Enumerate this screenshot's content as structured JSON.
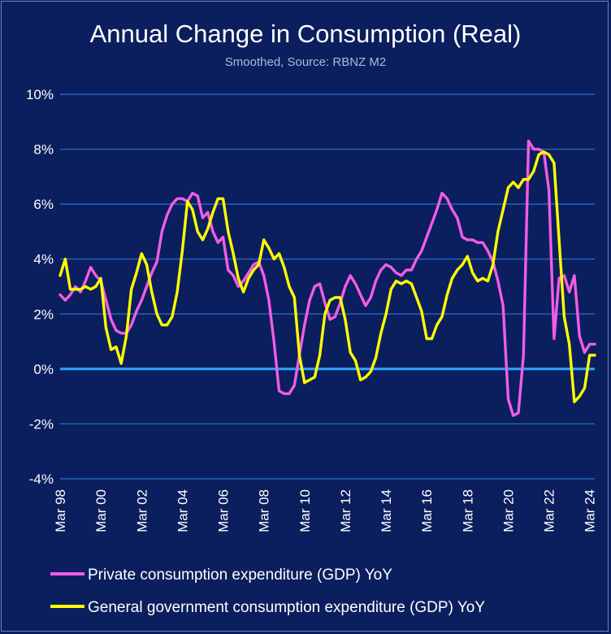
{
  "chart_data": {
    "type": "line",
    "title": "Annual Change in Consumption (Real)",
    "subtitle": "Smoothed, Source: RBNZ M2",
    "xlabel": "",
    "ylabel": "",
    "ylim": [
      -4,
      10
    ],
    "y_ticks": [
      "10%",
      "8%",
      "6%",
      "4%",
      "2%",
      "0%",
      "-2%",
      "-4%"
    ],
    "y_tick_values": [
      10,
      8,
      6,
      4,
      2,
      0,
      -2,
      -4
    ],
    "x_ticks": [
      "Mar 98",
      "Mar 00",
      "Mar 02",
      "Mar 04",
      "Mar 06",
      "Mar 08",
      "Mar 10",
      "Mar 12",
      "Mar 14",
      "Mar 16",
      "Mar 18",
      "Mar 20",
      "Mar 22",
      "Mar 24"
    ],
    "x_tick_values": [
      1998,
      2000,
      2002,
      2004,
      2006,
      2008,
      2010,
      2012,
      2014,
      2016,
      2018,
      2020,
      2022,
      2024
    ],
    "xlim": [
      1998,
      2024.25
    ],
    "gridlines": true,
    "legend_position": "bottom",
    "colors": {
      "background": "#0b1f5e",
      "grid": "#2f6fc8",
      "zero_line": "#2aa9ff"
    },
    "series": [
      {
        "name": "Private consumption expenditure (GDP) YoY",
        "color": "#f25ce6",
        "x": [
          1998,
          1998.25,
          1998.5,
          1998.75,
          1999,
          1999.25,
          1999.5,
          1999.75,
          2000,
          2000.25,
          2000.5,
          2000.75,
          2001,
          2001.25,
          2001.5,
          2001.75,
          2002,
          2002.25,
          2002.5,
          2002.75,
          2003,
          2003.25,
          2003.5,
          2003.75,
          2004,
          2004.25,
          2004.5,
          2004.75,
          2005,
          2005.25,
          2005.5,
          2005.75,
          2006,
          2006.25,
          2006.5,
          2006.75,
          2007,
          2007.25,
          2007.5,
          2007.75,
          2008,
          2008.25,
          2008.5,
          2008.75,
          2009,
          2009.25,
          2009.5,
          2009.75,
          2010,
          2010.25,
          2010.5,
          2010.75,
          2011,
          2011.25,
          2011.5,
          2011.75,
          2012,
          2012.25,
          2012.5,
          2012.75,
          2013,
          2013.25,
          2013.5,
          2013.75,
          2014,
          2014.25,
          2014.5,
          2014.75,
          2015,
          2015.25,
          2015.5,
          2015.75,
          2016,
          2016.25,
          2016.5,
          2016.75,
          2017,
          2017.25,
          2017.5,
          2017.75,
          2018,
          2018.25,
          2018.5,
          2018.75,
          2019,
          2019.25,
          2019.5,
          2019.75,
          2020,
          2020.25,
          2020.5,
          2020.75,
          2021,
          2021.25,
          2021.5,
          2021.75,
          2022,
          2022.25,
          2022.5,
          2022.75,
          2023,
          2023.25,
          2023.5,
          2023.75,
          2024,
          2024.25
        ],
        "values": [
          2.7,
          2.5,
          2.7,
          3.0,
          2.8,
          3.2,
          3.7,
          3.4,
          3.2,
          2.5,
          1.8,
          1.4,
          1.3,
          1.3,
          1.6,
          2.1,
          2.5,
          3.0,
          3.5,
          3.9,
          5.0,
          5.6,
          6.0,
          6.2,
          6.2,
          6.1,
          6.4,
          6.3,
          5.5,
          5.7,
          5.0,
          4.6,
          4.8,
          3.6,
          3.4,
          3.0,
          3.2,
          3.5,
          3.8,
          3.9,
          3.4,
          2.5,
          1.0,
          -0.8,
          -0.9,
          -0.9,
          -0.6,
          0.5,
          1.6,
          2.5,
          3.0,
          3.1,
          2.4,
          1.8,
          1.9,
          2.4,
          3.0,
          3.4,
          3.1,
          2.7,
          2.3,
          2.6,
          3.2,
          3.6,
          3.8,
          3.7,
          3.5,
          3.4,
          3.6,
          3.6,
          4.0,
          4.3,
          4.8,
          5.3,
          5.8,
          6.4,
          6.2,
          5.8,
          5.5,
          4.8,
          4.7,
          4.7,
          4.6,
          4.6,
          4.3,
          3.9,
          3.2,
          2.3,
          -1.1,
          -1.7,
          -1.6,
          0.5,
          8.3,
          8.0,
          8.0,
          7.9,
          6.5,
          1.1,
          3.3,
          3.4,
          2.8,
          3.4,
          1.2,
          0.6,
          0.9,
          0.9
        ]
      },
      {
        "name": "General government consumption expenditure (GDP) YoY",
        "color": "#ffff00",
        "x": [
          1998,
          1998.25,
          1998.5,
          1998.75,
          1999,
          1999.25,
          1999.5,
          1999.75,
          2000,
          2000.25,
          2000.5,
          2000.75,
          2001,
          2001.25,
          2001.5,
          2001.75,
          2002,
          2002.25,
          2002.5,
          2002.75,
          2003,
          2003.25,
          2003.5,
          2003.75,
          2004,
          2004.25,
          2004.5,
          2004.75,
          2005,
          2005.25,
          2005.5,
          2005.75,
          2006,
          2006.25,
          2006.5,
          2006.75,
          2007,
          2007.25,
          2007.5,
          2007.75,
          2008,
          2008.25,
          2008.5,
          2008.75,
          2009,
          2009.25,
          2009.5,
          2009.75,
          2010,
          2010.25,
          2010.5,
          2010.75,
          2011,
          2011.25,
          2011.5,
          2011.75,
          2012,
          2012.25,
          2012.5,
          2012.75,
          2013,
          2013.25,
          2013.5,
          2013.75,
          2014,
          2014.25,
          2014.5,
          2014.75,
          2015,
          2015.25,
          2015.5,
          2015.75,
          2016,
          2016.25,
          2016.5,
          2016.75,
          2017,
          2017.25,
          2017.5,
          2017.75,
          2018,
          2018.25,
          2018.5,
          2018.75,
          2019,
          2019.25,
          2019.5,
          2019.75,
          2020,
          2020.25,
          2020.5,
          2020.75,
          2021,
          2021.25,
          2021.5,
          2021.75,
          2022,
          2022.25,
          2022.5,
          2022.75,
          2023,
          2023.25,
          2023.5,
          2023.75,
          2024,
          2024.25
        ],
        "values": [
          3.4,
          4.0,
          2.9,
          2.9,
          2.9,
          3.0,
          2.9,
          3.0,
          3.3,
          1.5,
          0.7,
          0.8,
          0.2,
          1.2,
          2.9,
          3.5,
          4.2,
          3.8,
          2.8,
          2.0,
          1.6,
          1.6,
          1.9,
          2.8,
          4.3,
          6.1,
          5.8,
          5.0,
          4.7,
          5.1,
          5.7,
          6.2,
          6.2,
          5.0,
          4.2,
          3.3,
          2.8,
          3.3,
          3.6,
          3.8,
          4.7,
          4.4,
          4.0,
          4.2,
          3.7,
          3.0,
          2.6,
          0.5,
          -0.5,
          -0.4,
          -0.3,
          0.5,
          2.0,
          2.5,
          2.6,
          2.6,
          1.8,
          0.6,
          0.3,
          -0.4,
          -0.3,
          -0.1,
          0.4,
          1.3,
          2.0,
          2.9,
          3.2,
          3.1,
          3.2,
          3.1,
          2.6,
          2.1,
          1.1,
          1.1,
          1.6,
          1.9,
          2.7,
          3.3,
          3.6,
          3.8,
          4.1,
          3.5,
          3.2,
          3.3,
          3.2,
          3.8,
          5.0,
          5.8,
          6.6,
          6.8,
          6.6,
          6.9,
          6.9,
          7.2,
          7.8,
          7.9,
          7.8,
          7.5,
          4.7,
          1.9,
          0.9,
          -1.2,
          -1.0,
          -0.7,
          0.5,
          0.5
        ]
      }
    ]
  }
}
